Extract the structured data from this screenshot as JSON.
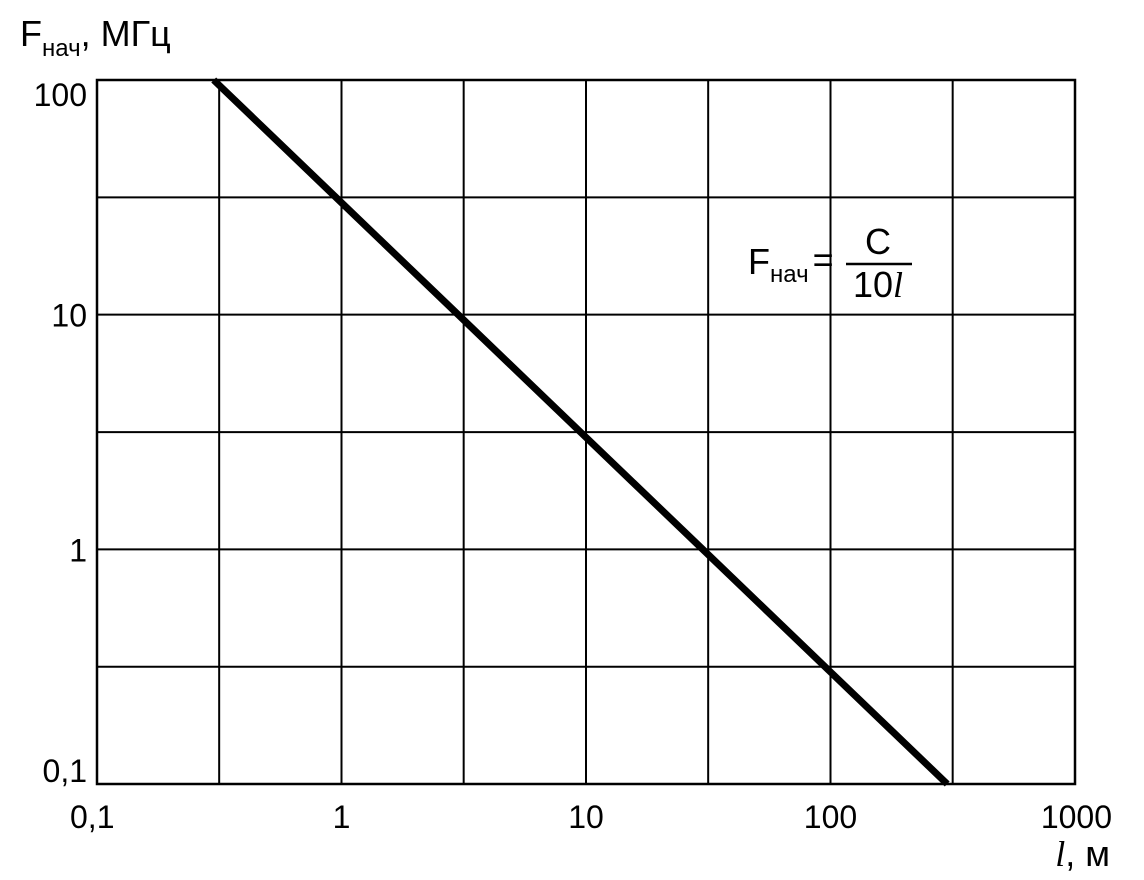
{
  "chart_data": {
    "type": "line",
    "x_scale": "log",
    "y_scale": "log",
    "xlim": [
      0.1,
      1000
    ],
    "ylim": [
      0.1,
      100
    ],
    "grid": true,
    "xlabel": {
      "var": "l",
      "unit": ", м"
    },
    "ylabel": {
      "main": "F",
      "sub": "нач",
      "unit": ", МГц"
    },
    "x_ticks": [
      {
        "value": 0.1,
        "label": "0,1"
      },
      {
        "value": 1,
        "label": "1"
      },
      {
        "value": 10,
        "label": "10"
      },
      {
        "value": 100,
        "label": "100"
      },
      {
        "value": 1000,
        "label": "1000"
      }
    ],
    "y_ticks": [
      {
        "value": 0.1,
        "label": "0,1"
      },
      {
        "value": 1,
        "label": "1"
      },
      {
        "value": 10,
        "label": "10"
      },
      {
        "value": 100,
        "label": "100"
      }
    ],
    "x_gridlines": [
      0.1,
      0.316,
      1,
      3.16,
      10,
      31.6,
      100,
      316,
      1000
    ],
    "y_gridlines": [
      0.1,
      0.316,
      1,
      3.16,
      10,
      31.6,
      100
    ],
    "series": [
      {
        "x": [
          0.3,
          1,
          3,
          10,
          30,
          100,
          300
        ],
        "y": [
          100,
          30,
          10,
          3,
          1,
          0.3,
          0.1
        ],
        "color": "#000000"
      }
    ],
    "annotation": {
      "lhs_main": "F",
      "lhs_sub": "нач",
      "equals": "=",
      "numerator": "C",
      "denominator_num": "10",
      "denominator_var": "l"
    }
  }
}
